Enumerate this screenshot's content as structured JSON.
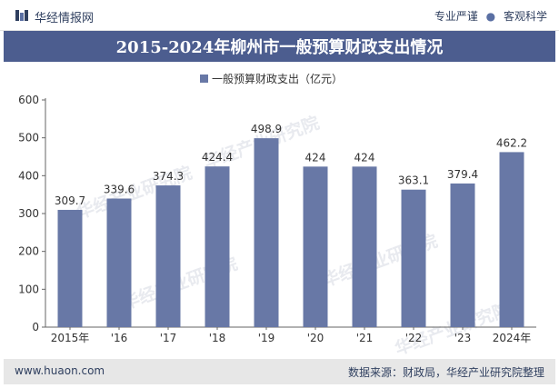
{
  "header": {
    "brand": "华经情报网",
    "tagline_left": "专业严谨",
    "tagline_right": "客观科学"
  },
  "title": "2015-2024年柳州市一般预算财政支出情况",
  "chart_data": {
    "type": "bar",
    "categories": [
      "2015年",
      "'16",
      "'17",
      "'18",
      "'19",
      "'20",
      "'21",
      "'22",
      "'23",
      "2024年"
    ],
    "series": [
      {
        "name": "一般预算财政支出（亿元）",
        "values": [
          309.7,
          339.6,
          374.3,
          424.4,
          498.9,
          424,
          424,
          363.1,
          379.4,
          462.2
        ]
      }
    ],
    "ylim": [
      0,
      600
    ],
    "yticks": [
      0,
      100,
      200,
      300,
      400,
      500,
      600
    ],
    "grid": false,
    "legend_position": "top-center",
    "bar_color": "#6878a6"
  },
  "watermark": "华经产业研究院",
  "footer": {
    "url": "www.huaon.com",
    "source": "数据来源：财政局，华经产业研究院整理"
  }
}
